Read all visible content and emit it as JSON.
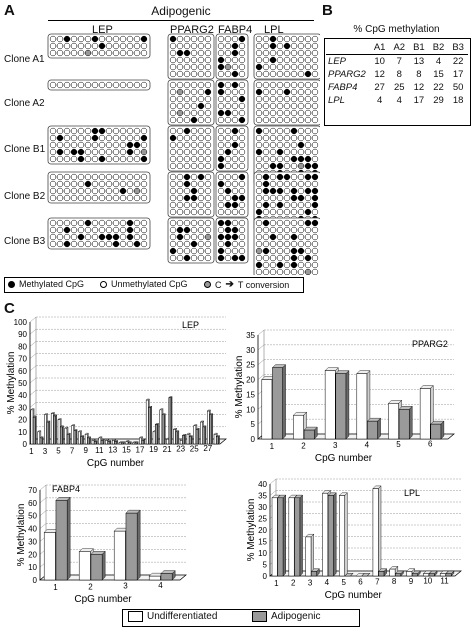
{
  "panels": {
    "a": "A",
    "b": "B",
    "c": "C"
  },
  "panel_a": {
    "group_title": "Adipogenic",
    "genes": [
      "LEP",
      "PPARG2",
      "FABP4",
      "LPL"
    ],
    "clones": [
      "Clone A1",
      "Clone A2",
      "Clone B1",
      "Clone B2",
      "Clone B3"
    ],
    "legend": {
      "methylated": "Methylated CpG",
      "unmethylated": "Unmethylated CpG",
      "conversion_prefix": "C",
      "conversion_suffix": "T conversion"
    }
  },
  "panel_b": {
    "title": "% CpG methylation",
    "columns": [
      "A1",
      "A2",
      "B1",
      "B2",
      "B3"
    ],
    "rows": [
      {
        "gene": "LEP",
        "values": [
          10,
          7,
          13,
          4,
          22
        ]
      },
      {
        "gene": "PPARG2",
        "values": [
          12,
          8,
          8,
          15,
          17
        ]
      },
      {
        "gene": "FABP4",
        "values": [
          27,
          25,
          12,
          22,
          50
        ]
      },
      {
        "gene": "LPL",
        "values": [
          4,
          4,
          17,
          29,
          18
        ]
      }
    ]
  },
  "legend": {
    "undifferentiated": "Undifferentiated",
    "adipogenic": "Adipogenic",
    "colors": {
      "undifferentiated": "#ffffff",
      "adipogenic": "#9a9a9a"
    }
  },
  "chart_data": [
    {
      "type": "bar",
      "title": "LEP",
      "xlabel": "CpG number",
      "ylabel": "% Methylation",
      "ylim": [
        0,
        100
      ],
      "yticks": [
        0,
        10,
        20,
        30,
        40,
        50,
        60,
        70,
        80,
        90,
        100
      ],
      "categories": [
        "1",
        "2",
        "3",
        "4",
        "5",
        "6",
        "7",
        "8",
        "9",
        "10",
        "11",
        "12",
        "13",
        "14",
        "15",
        "16",
        "17",
        "18",
        "19",
        "20",
        "21",
        "22",
        "23",
        "24",
        "25",
        "26",
        "27",
        "28"
      ],
      "xtick_labels": [
        "1",
        "",
        "3",
        "",
        "5",
        "",
        "7",
        "",
        "9",
        "",
        "11",
        "",
        "13",
        "",
        "15",
        "",
        "17",
        "",
        "19",
        "",
        "21",
        "",
        "23",
        "",
        "25",
        "",
        "27",
        ""
      ],
      "series": [
        {
          "name": "Undifferentiated",
          "values": [
            28,
            10,
            24,
            25,
            20,
            13,
            15,
            10,
            8,
            3,
            5,
            3,
            3,
            1,
            2,
            1,
            5,
            36,
            10,
            28,
            4,
            12,
            3,
            8,
            15,
            18,
            27,
            8
          ]
        },
        {
          "name": "Adipogenic",
          "values": [
            22,
            5,
            18,
            23,
            14,
            8,
            11,
            6,
            5,
            2,
            3,
            2,
            2,
            1,
            1,
            1,
            3,
            30,
            16,
            24,
            38,
            10,
            7,
            6,
            12,
            14,
            24,
            6
          ]
        }
      ]
    },
    {
      "type": "bar",
      "title": "PPARG2",
      "xlabel": "CpG number",
      "ylabel": "% Methylation",
      "ylim": [
        0,
        35
      ],
      "yticks": [
        0,
        5,
        10,
        15,
        20,
        25,
        30,
        35
      ],
      "categories": [
        "1",
        "2",
        "3",
        "4",
        "5",
        "6"
      ],
      "series": [
        {
          "name": "Undifferentiated",
          "values": [
            20,
            8,
            23,
            22,
            12,
            17
          ]
        },
        {
          "name": "Adipogenic",
          "values": [
            24,
            3,
            22,
            6,
            10,
            5
          ]
        }
      ]
    },
    {
      "type": "bar",
      "title": "FABP4",
      "xlabel": "CpG number",
      "ylabel": "% Methylation",
      "ylim": [
        0,
        70
      ],
      "yticks": [
        0,
        10,
        20,
        30,
        40,
        50,
        60,
        70
      ],
      "categories": [
        "1",
        "2",
        "3",
        "4"
      ],
      "series": [
        {
          "name": "Undifferentiated",
          "values": [
            37,
            22,
            38,
            3
          ]
        },
        {
          "name": "Adipogenic",
          "values": [
            62,
            20,
            52,
            5
          ]
        }
      ]
    },
    {
      "type": "bar",
      "title": "LPL",
      "xlabel": "CpG number",
      "ylabel": "% Methylation",
      "ylim": [
        0,
        40
      ],
      "yticks": [
        0,
        5,
        10,
        15,
        20,
        25,
        30,
        35,
        40
      ],
      "categories": [
        "1",
        "2",
        "3",
        "4",
        "5",
        "6",
        "7",
        "8",
        "9",
        "10",
        "11"
      ],
      "series": [
        {
          "name": "Undifferentiated",
          "values": [
            34,
            34,
            17,
            36,
            35,
            0,
            38,
            3,
            2,
            1,
            1
          ]
        },
        {
          "name": "Adipogenic",
          "values": [
            34,
            34,
            2,
            35,
            0,
            0,
            2,
            1,
            1,
            1,
            1
          ]
        }
      ]
    }
  ]
}
